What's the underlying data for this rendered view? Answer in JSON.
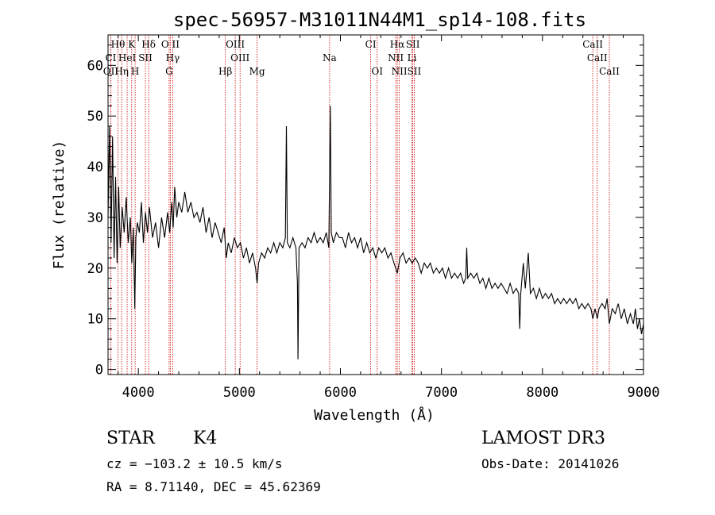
{
  "chart_data": {
    "type": "line",
    "title": "spec-56957-M31011N44M1_sp14-108.fits",
    "xlabel": "Wavelength (Å)",
    "ylabel": "Flux (relative)",
    "xlim": [
      3700,
      9000
    ],
    "ylim": [
      -1,
      66
    ],
    "x_ticks": [
      4000,
      5000,
      6000,
      7000,
      8000,
      9000
    ],
    "x_tick_labels": [
      "4000",
      "5000",
      "6000",
      "7000",
      "8000",
      "9000"
    ],
    "y_ticks": [
      0,
      10,
      20,
      30,
      40,
      50,
      60
    ],
    "y_tick_labels": [
      "0",
      "10",
      "20",
      "30",
      "40",
      "50",
      "60"
    ],
    "series": [
      {
        "name": "flux",
        "color": "#000000",
        "points": [
          [
            3700,
            30
          ],
          [
            3715,
            48
          ],
          [
            3730,
            25
          ],
          [
            3745,
            46
          ],
          [
            3760,
            22
          ],
          [
            3775,
            38
          ],
          [
            3790,
            21
          ],
          [
            3805,
            36
          ],
          [
            3820,
            24
          ],
          [
            3840,
            32
          ],
          [
            3860,
            27
          ],
          [
            3880,
            34
          ],
          [
            3900,
            25
          ],
          [
            3920,
            30
          ],
          [
            3935,
            21
          ],
          [
            3950,
            28
          ],
          [
            3965,
            12
          ],
          [
            3975,
            26
          ],
          [
            3990,
            29
          ],
          [
            4010,
            27
          ],
          [
            4030,
            33
          ],
          [
            4050,
            25
          ],
          [
            4070,
            31
          ],
          [
            4090,
            27
          ],
          [
            4110,
            32
          ],
          [
            4140,
            26
          ],
          [
            4170,
            29
          ],
          [
            4200,
            24
          ],
          [
            4230,
            30
          ],
          [
            4260,
            26
          ],
          [
            4290,
            31
          ],
          [
            4310,
            27
          ],
          [
            4330,
            33
          ],
          [
            4345,
            28
          ],
          [
            4360,
            36
          ],
          [
            4380,
            30
          ],
          [
            4400,
            33
          ],
          [
            4430,
            31
          ],
          [
            4460,
            35
          ],
          [
            4490,
            31
          ],
          [
            4520,
            33
          ],
          [
            4550,
            30
          ],
          [
            4580,
            31
          ],
          [
            4610,
            29
          ],
          [
            4640,
            32
          ],
          [
            4670,
            27
          ],
          [
            4700,
            30
          ],
          [
            4730,
            26
          ],
          [
            4760,
            29
          ],
          [
            4790,
            27
          ],
          [
            4820,
            25
          ],
          [
            4850,
            28
          ],
          [
            4870,
            22
          ],
          [
            4890,
            25
          ],
          [
            4920,
            23
          ],
          [
            4950,
            26
          ],
          [
            4980,
            24
          ],
          [
            5010,
            25
          ],
          [
            5040,
            22
          ],
          [
            5070,
            24
          ],
          [
            5100,
            21
          ],
          [
            5130,
            23
          ],
          [
            5160,
            20
          ],
          [
            5175,
            17
          ],
          [
            5190,
            21
          ],
          [
            5220,
            23
          ],
          [
            5250,
            22
          ],
          [
            5280,
            24
          ],
          [
            5310,
            23
          ],
          [
            5340,
            25
          ],
          [
            5370,
            23
          ],
          [
            5400,
            25
          ],
          [
            5430,
            24
          ],
          [
            5455,
            26
          ],
          [
            5465,
            48
          ],
          [
            5475,
            25
          ],
          [
            5500,
            24
          ],
          [
            5530,
            26
          ],
          [
            5560,
            24
          ],
          [
            5575,
            17
          ],
          [
            5580,
            2
          ],
          [
            5590,
            24
          ],
          [
            5620,
            25
          ],
          [
            5650,
            24
          ],
          [
            5680,
            26
          ],
          [
            5710,
            25
          ],
          [
            5740,
            27
          ],
          [
            5770,
            25
          ],
          [
            5800,
            26
          ],
          [
            5830,
            25
          ],
          [
            5860,
            27
          ],
          [
            5885,
            24
          ],
          [
            5895,
            42
          ],
          [
            5900,
            52
          ],
          [
            5910,
            27
          ],
          [
            5930,
            25
          ],
          [
            5960,
            27
          ],
          [
            5990,
            26
          ],
          [
            6020,
            26
          ],
          [
            6050,
            24
          ],
          [
            6080,
            27
          ],
          [
            6110,
            25
          ],
          [
            6140,
            26
          ],
          [
            6170,
            24
          ],
          [
            6200,
            26
          ],
          [
            6230,
            23
          ],
          [
            6260,
            25
          ],
          [
            6290,
            23
          ],
          [
            6320,
            24
          ],
          [
            6350,
            22
          ],
          [
            6380,
            24
          ],
          [
            6410,
            23
          ],
          [
            6440,
            24
          ],
          [
            6470,
            22
          ],
          [
            6500,
            23
          ],
          [
            6530,
            21
          ],
          [
            6563,
            19
          ],
          [
            6590,
            22
          ],
          [
            6620,
            23
          ],
          [
            6650,
            21
          ],
          [
            6680,
            22
          ],
          [
            6710,
            21
          ],
          [
            6740,
            22
          ],
          [
            6770,
            21
          ],
          [
            6800,
            19
          ],
          [
            6830,
            21
          ],
          [
            6860,
            20
          ],
          [
            6890,
            21
          ],
          [
            6920,
            19
          ],
          [
            6950,
            20
          ],
          [
            6980,
            19
          ],
          [
            7010,
            20
          ],
          [
            7040,
            18
          ],
          [
            7070,
            20
          ],
          [
            7100,
            18
          ],
          [
            7130,
            19
          ],
          [
            7160,
            18
          ],
          [
            7190,
            19
          ],
          [
            7220,
            17
          ],
          [
            7240,
            18
          ],
          [
            7250,
            24
          ],
          [
            7260,
            18
          ],
          [
            7290,
            19
          ],
          [
            7320,
            18
          ],
          [
            7350,
            19
          ],
          [
            7380,
            17
          ],
          [
            7410,
            18
          ],
          [
            7440,
            16
          ],
          [
            7470,
            18
          ],
          [
            7500,
            16
          ],
          [
            7530,
            17
          ],
          [
            7560,
            16
          ],
          [
            7590,
            17
          ],
          [
            7620,
            16
          ],
          [
            7650,
            15
          ],
          [
            7680,
            17
          ],
          [
            7710,
            15
          ],
          [
            7740,
            16
          ],
          [
            7765,
            15
          ],
          [
            7775,
            8
          ],
          [
            7785,
            15
          ],
          [
            7810,
            21
          ],
          [
            7830,
            16
          ],
          [
            7860,
            23
          ],
          [
            7880,
            15
          ],
          [
            7910,
            16
          ],
          [
            7940,
            14
          ],
          [
            7970,
            16
          ],
          [
            8000,
            14
          ],
          [
            8030,
            15
          ],
          [
            8060,
            14
          ],
          [
            8090,
            15
          ],
          [
            8120,
            13
          ],
          [
            8150,
            14
          ],
          [
            8180,
            13
          ],
          [
            8210,
            14
          ],
          [
            8240,
            13
          ],
          [
            8270,
            14
          ],
          [
            8300,
            13
          ],
          [
            8330,
            14
          ],
          [
            8360,
            12
          ],
          [
            8390,
            13
          ],
          [
            8420,
            12
          ],
          [
            8450,
            13
          ],
          [
            8480,
            12
          ],
          [
            8498,
            10
          ],
          [
            8520,
            12
          ],
          [
            8542,
            10
          ],
          [
            8560,
            12
          ],
          [
            8590,
            13
          ],
          [
            8620,
            12
          ],
          [
            8640,
            14
          ],
          [
            8662,
            9
          ],
          [
            8690,
            12
          ],
          [
            8720,
            11
          ],
          [
            8750,
            13
          ],
          [
            8780,
            10
          ],
          [
            8810,
            12
          ],
          [
            8840,
            9
          ],
          [
            8870,
            11
          ],
          [
            8900,
            9
          ],
          [
            8920,
            12
          ],
          [
            8940,
            8
          ],
          [
            8960,
            10
          ],
          [
            8980,
            7
          ],
          [
            9000,
            9
          ]
        ]
      }
    ],
    "lines": [
      {
        "name": "Hθ",
        "x": 3798,
        "row": 0
      },
      {
        "name": "K",
        "x": 3934,
        "row": 0
      },
      {
        "name": "Hδ",
        "x": 4102,
        "row": 0
      },
      {
        "name": "O II",
        "x": 4317,
        "row": 0
      },
      {
        "name": "OIII",
        "x": 4959,
        "row": 0
      },
      {
        "name": "CI",
        "x": 6300,
        "row": 0
      },
      {
        "name": "Hα",
        "x": 6563,
        "row": 0
      },
      {
        "name": "SII",
        "x": 6717,
        "row": 0
      },
      {
        "name": "CaII",
        "x": 8498,
        "row": 0
      },
      {
        "name": "CI",
        "x": 3727,
        "row": 1
      },
      {
        "name": "HeI",
        "x": 3889,
        "row": 1
      },
      {
        "name": "SII",
        "x": 4070,
        "row": 1
      },
      {
        "name": "Hγ",
        "x": 4340,
        "row": 1
      },
      {
        "name": "OIII",
        "x": 5007,
        "row": 1
      },
      {
        "name": "Na",
        "x": 5893,
        "row": 1
      },
      {
        "name": "NII",
        "x": 6548,
        "row": 1
      },
      {
        "name": "Li",
        "x": 6708,
        "row": 1
      },
      {
        "name": "CaII",
        "x": 8542,
        "row": 1
      },
      {
        "name": "OII",
        "x": 3727,
        "row": 2
      },
      {
        "name": "Hη",
        "x": 3835,
        "row": 2
      },
      {
        "name": "H",
        "x": 3968,
        "row": 2
      },
      {
        "name": "G",
        "x": 4305,
        "row": 2
      },
      {
        "name": "Hβ",
        "x": 4861,
        "row": 2
      },
      {
        "name": "Mg",
        "x": 5175,
        "row": 2
      },
      {
        "name": "OI",
        "x": 6364,
        "row": 2
      },
      {
        "name": "NII",
        "x": 6583,
        "row": 2
      },
      {
        "name": "SII",
        "x": 6731,
        "row": 2
      },
      {
        "name": "CaII",
        "x": 8662,
        "row": 2
      }
    ],
    "line_color": "#cc0000"
  },
  "info": {
    "object_class": "STAR",
    "subclass": "K4",
    "survey": "LAMOST DR3",
    "cz": "cz = −103.2 ± 10.5 km/s",
    "obs_date": "Obs-Date: 20141026",
    "coords": "RA =   8.71140, DEC =  45.62369"
  }
}
